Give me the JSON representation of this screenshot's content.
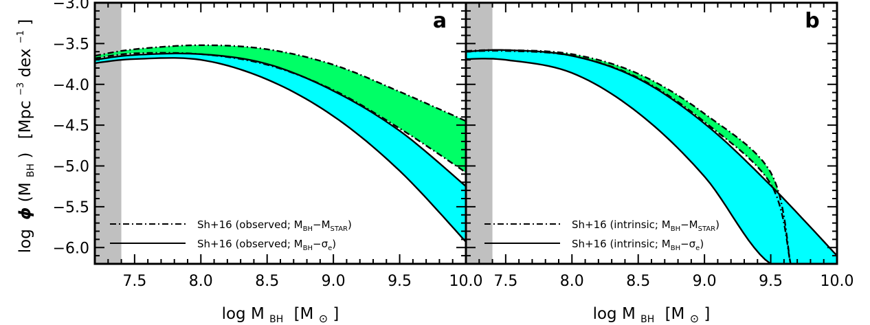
{
  "figure": {
    "ylabel_parts": {
      "log": "log",
      "phi": "ϕ",
      "open": "(M",
      "sub": "BH",
      "close": ")",
      "unit_open": "[Mpc",
      "unit_exp1": "−3",
      "unit_mid": " dex",
      "unit_exp2": "−1",
      "unit_close": "]"
    },
    "xlabel_parts": {
      "log": "log M",
      "sub": "BH",
      "unit": "[M",
      "sun": "⊙",
      "unit_close": "]"
    }
  },
  "chart_data": [
    {
      "panel": "a",
      "type": "area",
      "xlim": [
        7.2,
        10.0
      ],
      "ylim": [
        -6.2,
        -3.0
      ],
      "x_ticks": [
        "7.5",
        "8.0",
        "8.5",
        "9.0",
        "9.5",
        "10.0"
      ],
      "y_ticks": [
        "-3.0",
        "-3.5",
        "-4.0",
        "-4.5",
        "-5.0",
        "-5.5",
        "-6.0"
      ],
      "shaded_x_range": [
        7.2,
        7.4
      ],
      "colors": {
        "mstar_band": "#00ff66",
        "sigma_band": "#00ffff",
        "shade": "#c0c0c0"
      },
      "bands": [
        {
          "legend": {
            "text": "Sh+16 (observed; M",
            "sub1": "BH",
            "mid": "−M",
            "sub2": "STAR",
            "end": ")"
          },
          "style": "dash-dot",
          "color_key": "mstar_band",
          "x": [
            7.2,
            7.5,
            8.0,
            8.5,
            9.0,
            9.5,
            10.0
          ],
          "upper": [
            -3.65,
            -3.57,
            -3.52,
            -3.57,
            -3.76,
            -4.09,
            -4.45
          ],
          "lower": [
            -3.68,
            -3.62,
            -3.63,
            -3.76,
            -4.07,
            -4.54,
            -5.08
          ]
        },
        {
          "legend": {
            "text": "Sh+16 (observed; M",
            "sub1": "BH",
            "mid": "−σ",
            "sub2": "e",
            "end": ")"
          },
          "style": "solid",
          "color_key": "sigma_band",
          "x": [
            7.2,
            7.5,
            8.0,
            8.5,
            9.0,
            9.5,
            10.0
          ],
          "upper": [
            -3.7,
            -3.64,
            -3.63,
            -3.75,
            -4.08,
            -4.57,
            -5.25
          ],
          "lower": [
            -3.74,
            -3.69,
            -3.7,
            -3.94,
            -4.39,
            -5.06,
            -5.93
          ]
        }
      ]
    },
    {
      "panel": "b",
      "type": "area",
      "xlim": [
        7.2,
        10.0
      ],
      "ylim": [
        -6.2,
        -3.0
      ],
      "x_ticks": [
        "7.5",
        "8.0",
        "8.5",
        "9.0",
        "9.5",
        "10.0"
      ],
      "shaded_x_range": [
        7.2,
        7.4
      ],
      "colors": {
        "mstar_band": "#00ff66",
        "sigma_band": "#00ffff",
        "shade": "#c0c0c0"
      },
      "bands": [
        {
          "legend": {
            "text": "Sh+16 (intrinsic; M",
            "sub1": "BH",
            "mid": "−M",
            "sub2": "STAR",
            "end": ")"
          },
          "style": "dash-dot",
          "color_key": "mstar_band",
          "x": [
            7.2,
            7.5,
            8.0,
            8.5,
            9.0,
            9.5,
            9.65
          ],
          "upper": [
            -3.59,
            -3.58,
            -3.63,
            -3.87,
            -4.36,
            -5.08,
            -6.2
          ],
          "lower": [
            -3.6,
            -3.59,
            -3.65,
            -3.92,
            -4.46,
            -5.22,
            -6.2
          ]
        },
        {
          "legend": {
            "text": "Sh+16 (intrinsic; M",
            "sub1": "BH",
            "mid": "−σ",
            "sub2": "e",
            "end": ")"
          },
          "style": "solid",
          "color_key": "sigma_band",
          "x": [
            7.2,
            7.5,
            8.0,
            8.5,
            9.0,
            9.5,
            10.0
          ],
          "upper": [
            -3.6,
            -3.58,
            -3.65,
            -3.93,
            -4.48,
            -5.24,
            -6.1
          ],
          "lower": [
            -3.69,
            -3.7,
            -3.86,
            -4.35,
            -5.13,
            -6.2,
            -6.2
          ]
        }
      ]
    }
  ]
}
